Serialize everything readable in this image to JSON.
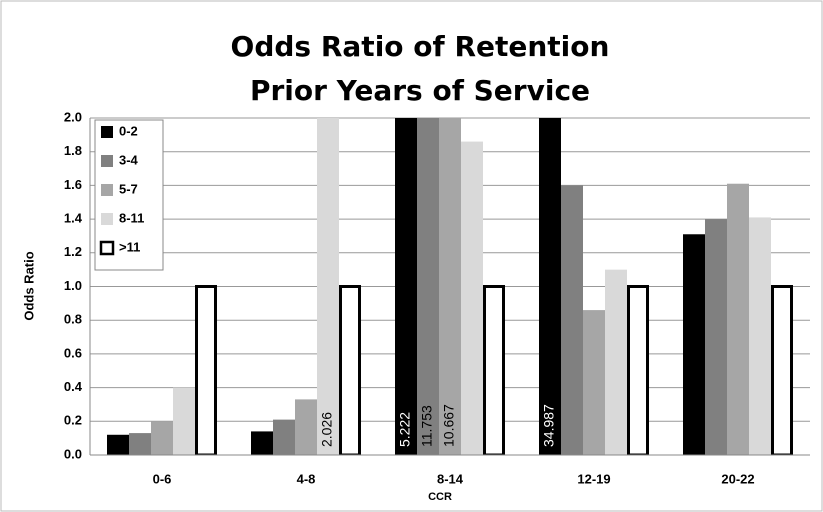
{
  "chart_data": {
    "type": "bar",
    "title": "Odds Ratio of Retention",
    "subtitle": "Prior Years of Service",
    "x_label": "CCR",
    "y_label": "Odds Ratio",
    "categories": [
      "0-6",
      "4-8",
      "8-14",
      "12-19",
      "20-22"
    ],
    "series": [
      {
        "name": "0-2",
        "color": "#000000",
        "values": [
          0.12,
          0.14,
          5.222,
          34.987,
          1.31
        ],
        "value_labels": [
          null,
          null,
          "5.222",
          "34.987",
          null
        ]
      },
      {
        "name": "3-4",
        "color": "#808080",
        "values": [
          0.13,
          0.21,
          11.753,
          1.6,
          1.4
        ],
        "value_labels": [
          null,
          null,
          "11.753",
          null,
          null
        ]
      },
      {
        "name": "5-7",
        "color": "#a6a6a6",
        "values": [
          0.2,
          0.33,
          10.667,
          0.86,
          1.61
        ],
        "value_labels": [
          null,
          null,
          "10.667",
          null,
          null
        ]
      },
      {
        "name": "8-11",
        "color": "#d9d9d9",
        "values": [
          0.4,
          2.026,
          1.86,
          1.1,
          1.41
        ],
        "value_labels": [
          null,
          "2.026",
          null,
          null,
          null
        ]
      },
      {
        "name": ">11",
        "color": "#ffffff",
        "values": [
          1.0,
          1.0,
          1.0,
          1.0,
          1.0
        ]
      }
    ],
    "ylim": [
      0,
      2
    ],
    "yticks": [
      {
        "value": 0,
        "label": "0.0"
      },
      0.2,
      0.4,
      0.6,
      0.8,
      {
        "value": 1,
        "label": "1.0"
      },
      1.2,
      1.4,
      1.6,
      1.8,
      {
        "value": 2,
        "label": "2.0"
      }
    ],
    "grid": true,
    "legend": "top-left"
  }
}
